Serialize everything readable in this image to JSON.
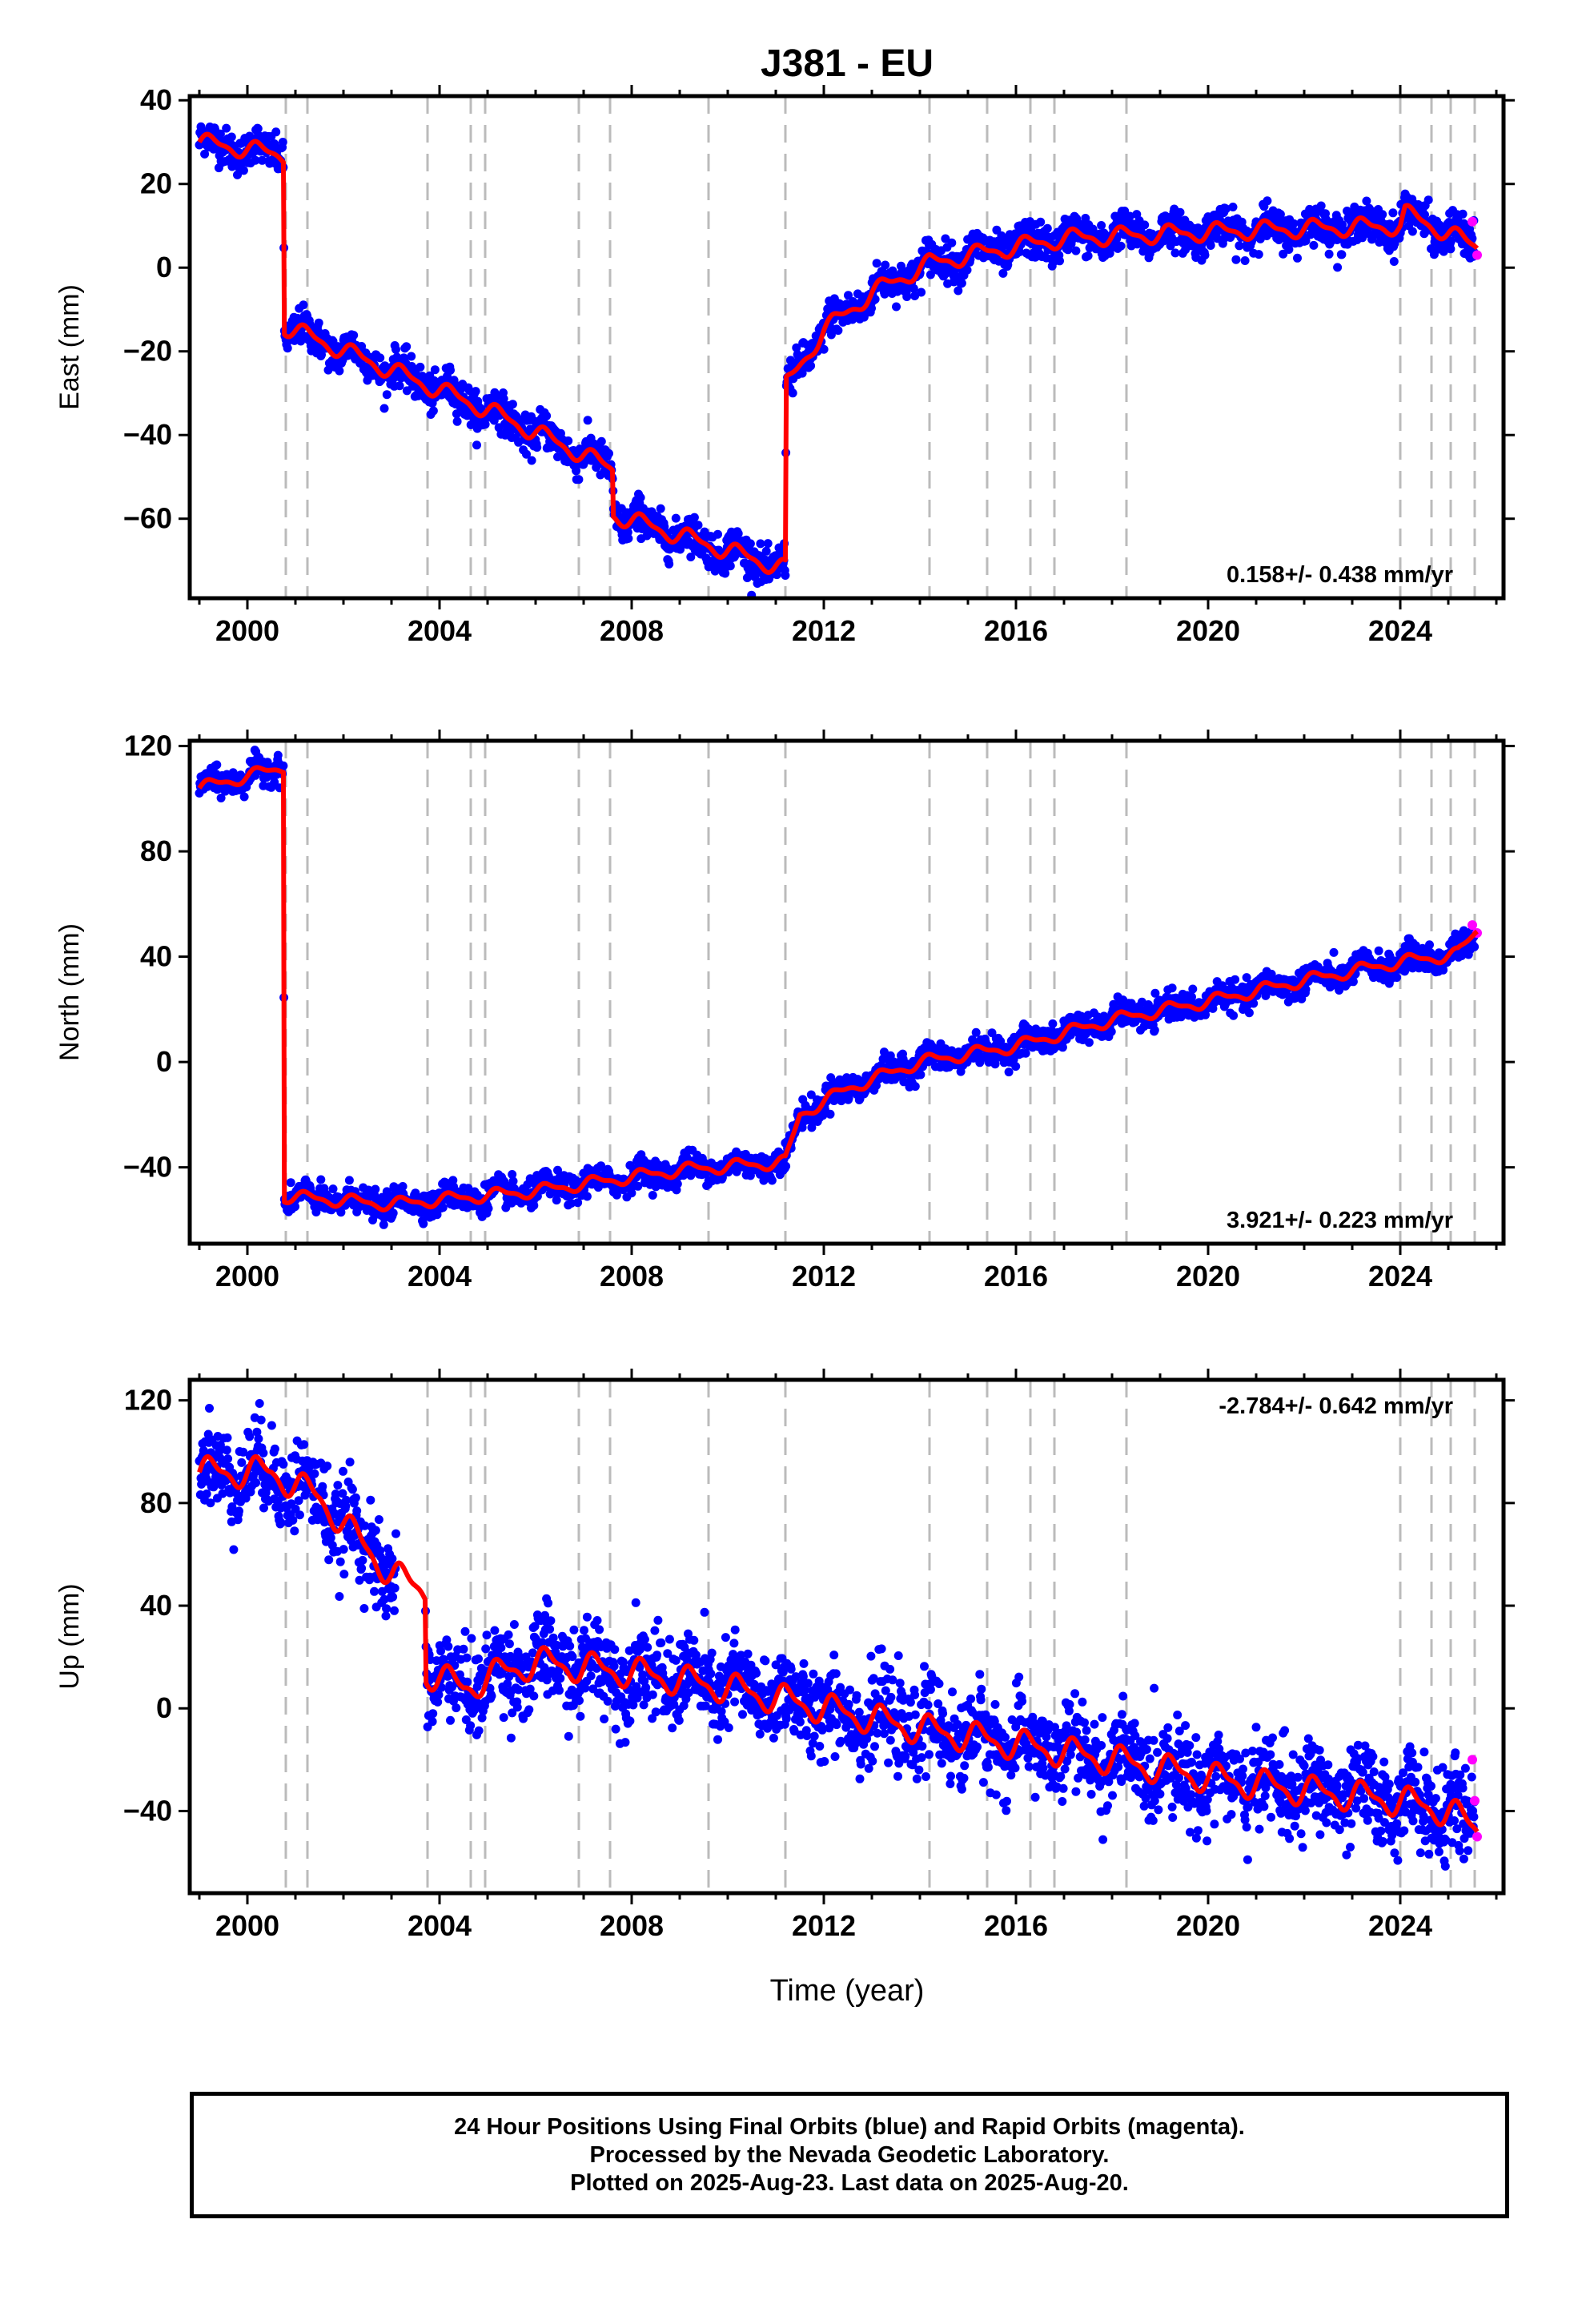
{
  "title": "J381 - EU",
  "xlabel": "Time (year)",
  "caption": {
    "line1": "24 Hour Positions Using Final Orbits (blue) and Rapid Orbits (magenta).",
    "line2": "Processed by the Nevada Geodetic Laboratory.",
    "line3": "Plotted on 2025-Aug-23. Last data on 2025-Aug-20."
  },
  "colors": {
    "final": "#0000ff",
    "rapid": "#ff00ff",
    "model": "#ff0000",
    "event_lines": "#bbbbbb"
  },
  "event_lines_years": [
    2000.8,
    2001.25,
    2003.75,
    2004.65,
    2004.95,
    2006.9,
    2007.55,
    2009.6,
    2011.2,
    2014.2,
    2015.4,
    2016.3,
    2016.8,
    2018.3,
    2024.0,
    2024.65,
    2025.05,
    2025.55
  ],
  "chart_data": [
    {
      "type": "scatter",
      "name": "east",
      "ylabel": "East (mm)",
      "rate_label": "0.158+/- 0.438 mm/yr",
      "rate_position": "bottom-right",
      "xlim": [
        1998.8,
        2026.15
      ],
      "ylim": [
        -79,
        41
      ],
      "xticks": [
        2000,
        2004,
        2008,
        2012,
        2016,
        2020,
        2024
      ],
      "xtick_labels": [
        "2000",
        "2004",
        "2008",
        "2012",
        "2016",
        "2020",
        "2024"
      ],
      "yticks": [
        40,
        20,
        0,
        -20,
        -40,
        -60
      ],
      "ytick_labels": [
        "40",
        "20",
        "0",
        "−20",
        "−40",
        "−60"
      ],
      "noise_mm": 2.2,
      "amp_mm": 1.8,
      "model_knots": [
        [
          1999.0,
          30
        ],
        [
          2000.75,
          27
        ],
        [
          2000.77,
          -14
        ],
        [
          2005.0,
          -34
        ],
        [
          2007.6,
          -48
        ],
        [
          2007.62,
          -59
        ],
        [
          2011.2,
          -72
        ],
        [
          2011.22,
          -28
        ],
        [
          2012.0,
          -15
        ],
        [
          2013.0,
          -6
        ],
        [
          2014.2,
          1
        ],
        [
          2015.5,
          4
        ],
        [
          2017.0,
          7
        ],
        [
          2019.0,
          8
        ],
        [
          2021.0,
          9
        ],
        [
          2024.0,
          10
        ],
        [
          2024.1,
          13
        ],
        [
          2025.6,
          5
        ]
      ],
      "rapid": {
        "x": [
          2025.5,
          2025.6
        ],
        "y": [
          11,
          3
        ]
      }
    },
    {
      "type": "scatter",
      "name": "north",
      "ylabel": "North (mm)",
      "rate_label": "3.921+/- 0.223 mm/yr",
      "rate_position": "bottom-right",
      "xlim": [
        1998.8,
        2026.15
      ],
      "ylim": [
        -69,
        122
      ],
      "xticks": [
        2000,
        2004,
        2008,
        2012,
        2016,
        2020,
        2024
      ],
      "xtick_labels": [
        "2000",
        "2004",
        "2008",
        "2012",
        "2016",
        "2020",
        "2024"
      ],
      "yticks": [
        120,
        80,
        40,
        0,
        -40
      ],
      "ytick_labels": [
        "120",
        "80",
        "40",
        "0",
        "−40"
      ],
      "noise_mm": 2.5,
      "amp_mm": 2.0,
      "model_knots": [
        [
          1999.0,
          104
        ],
        [
          2000.75,
          112
        ],
        [
          2000.77,
          -51
        ],
        [
          2003.0,
          -54
        ],
        [
          2006.0,
          -49
        ],
        [
          2009.0,
          -41
        ],
        [
          2011.2,
          -38
        ],
        [
          2011.5,
          -20
        ],
        [
          2012.5,
          -10
        ],
        [
          2014.0,
          0
        ],
        [
          2016.0,
          6
        ],
        [
          2018.0,
          16
        ],
        [
          2020.0,
          23
        ],
        [
          2022.0,
          31
        ],
        [
          2024.0,
          38
        ],
        [
          2025.2,
          41
        ],
        [
          2025.6,
          50
        ]
      ],
      "rapid": {
        "x": [
          2025.5,
          2025.6
        ],
        "y": [
          52,
          49
        ]
      }
    },
    {
      "type": "scatter",
      "name": "up",
      "ylabel": "Up (mm)",
      "rate_label": "-2.784+/- 0.642 mm/yr",
      "rate_position": "top-right",
      "xlim": [
        1998.8,
        2026.15
      ],
      "ylim": [
        -72,
        128
      ],
      "xticks": [
        2000,
        2004,
        2008,
        2012,
        2016,
        2020,
        2024
      ],
      "xtick_labels": [
        "2000",
        "2004",
        "2008",
        "2012",
        "2016",
        "2020",
        "2024"
      ],
      "yticks": [
        120,
        80,
        40,
        0,
        -40
      ],
      "ytick_labels": [
        "120",
        "80",
        "40",
        "0",
        "−40"
      ],
      "noise_mm": 8.5,
      "amp_mm": 5.0,
      "model_knots": [
        [
          1999.0,
          92
        ],
        [
          2000.5,
          92
        ],
        [
          2001.5,
          82
        ],
        [
          2002.2,
          68
        ],
        [
          2003.0,
          52
        ],
        [
          2003.7,
          46
        ],
        [
          2003.72,
          14
        ],
        [
          2004.5,
          8
        ],
        [
          2005.0,
          12
        ],
        [
          2006.0,
          18
        ],
        [
          2008.0,
          14
        ],
        [
          2010.0,
          8
        ],
        [
          2012.0,
          0
        ],
        [
          2014.0,
          -8
        ],
        [
          2016.0,
          -14
        ],
        [
          2018.0,
          -20
        ],
        [
          2020.0,
          -27
        ],
        [
          2022.0,
          -32
        ],
        [
          2024.0,
          -36
        ],
        [
          2025.0,
          -40
        ],
        [
          2025.6,
          -47
        ]
      ],
      "rapid": {
        "x": [
          2025.5,
          2025.55,
          2025.6
        ],
        "y": [
          -20,
          -36,
          -50
        ]
      }
    }
  ]
}
